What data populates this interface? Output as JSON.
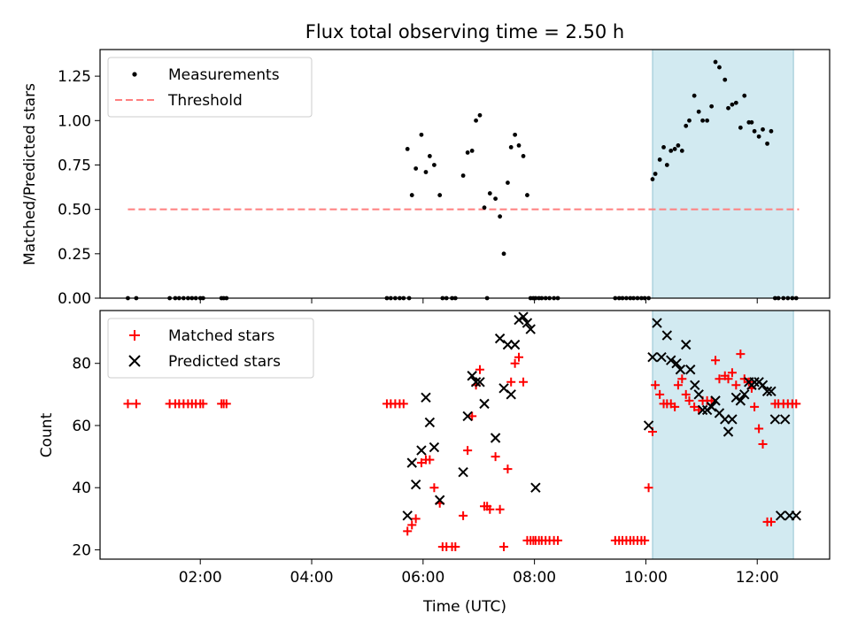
{
  "chart_data": [
    {
      "panel": "top",
      "type": "scatter",
      "title": "Flux total observing time = 2.50 h",
      "xlabel": "",
      "ylabel": "Matched/Predicted stars",
      "xlim": [
        0.2,
        13.3
      ],
      "ylim": [
        0,
        1.4
      ],
      "yticks": [
        0.0,
        0.25,
        0.5,
        0.75,
        1.0,
        1.25
      ],
      "ytick_labels": [
        "0.00",
        "0.25",
        "0.50",
        "0.75",
        "1.00",
        "1.25"
      ],
      "xticks": [
        2,
        4,
        6,
        8,
        10,
        12
      ],
      "xtick_labels": [],
      "shaded_region": {
        "x": [
          10.12,
          12.65
        ],
        "color": "#add8e6"
      },
      "legend_placement": "upper-left",
      "series": [
        {
          "name": "Measurements",
          "kind": "points",
          "color": "#000000",
          "x": [
            0.7,
            0.85,
            1.45,
            1.55,
            1.62,
            1.7,
            1.78,
            1.85,
            1.92,
            2.0,
            2.05,
            2.38,
            2.42,
            2.47,
            5.35,
            5.42,
            5.5,
            5.58,
            5.65,
            5.72,
            5.75,
            5.8,
            5.87,
            5.97,
            6.05,
            6.12,
            6.2,
            6.3,
            6.35,
            6.42,
            6.52,
            6.58,
            6.72,
            6.8,
            6.88,
            6.95,
            7.02,
            7.1,
            7.15,
            7.2,
            7.3,
            7.38,
            7.45,
            7.52,
            7.58,
            7.65,
            7.72,
            7.8,
            7.87,
            7.93,
            7.98,
            8.02,
            8.08,
            8.13,
            8.2,
            8.27,
            8.35,
            8.42,
            9.45,
            9.52,
            9.58,
            9.65,
            9.72,
            9.78,
            9.85,
            9.92,
            9.98,
            10.05,
            10.12,
            10.17,
            10.25,
            10.32,
            10.38,
            10.45,
            10.52,
            10.58,
            10.65,
            10.72,
            10.78,
            10.87,
            10.95,
            11.02,
            11.1,
            11.18,
            11.25,
            11.32,
            11.42,
            11.48,
            11.55,
            11.62,
            11.7,
            11.77,
            11.85,
            11.9,
            11.95,
            12.03,
            12.1,
            12.18,
            12.25,
            12.32,
            12.38,
            12.47,
            12.55,
            12.63,
            12.7
          ],
          "y": [
            0,
            0,
            0,
            0,
            0,
            0,
            0,
            0,
            0,
            0,
            0,
            0,
            0,
            0,
            0,
            0,
            0,
            0,
            0,
            0.84,
            0,
            0.58,
            0.73,
            0.92,
            0.71,
            0.8,
            0.75,
            0.58,
            0,
            0,
            0,
            0,
            0.69,
            0.82,
            0.83,
            1.0,
            1.03,
            0.51,
            0,
            0.59,
            0.56,
            0.46,
            0.25,
            0.65,
            0.85,
            0.92,
            0.86,
            0.8,
            0.58,
            0,
            0,
            0,
            0,
            0,
            0,
            0,
            0,
            0,
            0,
            0,
            0,
            0,
            0,
            0,
            0,
            0,
            0,
            0,
            0.67,
            0.7,
            0.78,
            0.85,
            0.75,
            0.83,
            0.84,
            0.86,
            0.83,
            0.97,
            1.0,
            1.14,
            1.05,
            1.0,
            1.0,
            1.08,
            1.33,
            1.3,
            1.23,
            1.07,
            1.09,
            1.1,
            0.96,
            1.14,
            0.99,
            0.99,
            0.94,
            0.91,
            0.95,
            0.87,
            0.94,
            0,
            0,
            0,
            0,
            0,
            0
          ]
        },
        {
          "name": "Threshold",
          "kind": "dashed-line",
          "color": "#ff7f7f",
          "x": [
            0.7,
            12.75
          ],
          "y": [
            0.5,
            0.5
          ]
        }
      ]
    },
    {
      "panel": "bottom",
      "type": "scatter",
      "title": "",
      "xlabel": "Time (UTC)",
      "ylabel": "Count",
      "xlim": [
        0.2,
        13.3
      ],
      "ylim": [
        17,
        97
      ],
      "yticks": [
        20,
        40,
        60,
        80
      ],
      "ytick_labels": [
        "20",
        "40",
        "60",
        "80"
      ],
      "xticks": [
        2,
        4,
        6,
        8,
        10,
        12
      ],
      "xtick_labels": [
        "02:00",
        "04:00",
        "06:00",
        "08:00",
        "10:00",
        "12:00"
      ],
      "shaded_region": {
        "x": [
          10.12,
          12.65
        ],
        "color": "#add8e6"
      },
      "legend_placement": "upper-left",
      "series": [
        {
          "name": "Matched stars",
          "kind": "plus",
          "color": "#ff0000",
          "x": [
            0.7,
            0.85,
            1.45,
            1.55,
            1.62,
            1.7,
            1.78,
            1.85,
            1.92,
            2.0,
            2.05,
            2.38,
            2.42,
            2.47,
            5.35,
            5.42,
            5.5,
            5.58,
            5.65,
            5.72,
            5.8,
            5.87,
            5.97,
            6.05,
            6.12,
            6.2,
            6.3,
            6.35,
            6.42,
            6.52,
            6.58,
            6.72,
            6.8,
            6.88,
            6.95,
            7.02,
            7.1,
            7.15,
            7.2,
            7.3,
            7.38,
            7.45,
            7.52,
            7.58,
            7.65,
            7.72,
            7.8,
            7.87,
            7.93,
            7.98,
            8.02,
            8.08,
            8.13,
            8.2,
            8.27,
            8.35,
            8.42,
            9.45,
            9.52,
            9.58,
            9.65,
            9.72,
            9.78,
            9.85,
            9.92,
            9.98,
            10.05,
            10.12,
            10.17,
            10.25,
            10.32,
            10.38,
            10.45,
            10.52,
            10.58,
            10.65,
            10.72,
            10.78,
            10.87,
            10.95,
            11.02,
            11.1,
            11.18,
            11.25,
            11.32,
            11.42,
            11.48,
            11.55,
            11.62,
            11.7,
            11.77,
            11.85,
            11.9,
            11.95,
            12.03,
            12.1,
            12.18,
            12.25,
            12.32,
            12.38,
            12.47,
            12.55,
            12.63,
            12.7
          ],
          "y": [
            67,
            67,
            67,
            67,
            67,
            67,
            67,
            67,
            67,
            67,
            67,
            67,
            67,
            67,
            67,
            67,
            67,
            67,
            67,
            26,
            28,
            30,
            48,
            49,
            49,
            40,
            35,
            21,
            21,
            21,
            21,
            31,
            52,
            63,
            73,
            78,
            34,
            34,
            33,
            50,
            33,
            21,
            46,
            74,
            80,
            82,
            74,
            23,
            23,
            23,
            23,
            23,
            23,
            23,
            23,
            23,
            23,
            23,
            23,
            23,
            23,
            23,
            23,
            23,
            23,
            23,
            40,
            58,
            73,
            70,
            67,
            67,
            67,
            66,
            73,
            75,
            70,
            68,
            66,
            65,
            68,
            68,
            68,
            81,
            75,
            76,
            75,
            77,
            73,
            83,
            75,
            74,
            72,
            66,
            59,
            54,
            29,
            29,
            67,
            67,
            67,
            67,
            67,
            67
          ]
        },
        {
          "name": "Predicted stars",
          "kind": "x",
          "color": "#000000",
          "x": [
            5.72,
            5.8,
            5.87,
            5.97,
            6.05,
            6.12,
            6.2,
            6.3,
            6.72,
            6.8,
            6.88,
            6.95,
            7.02,
            7.1,
            7.3,
            7.38,
            7.45,
            7.52,
            7.58,
            7.65,
            7.72,
            7.8,
            7.87,
            7.93,
            8.02,
            10.05,
            10.12,
            10.2,
            10.28,
            10.38,
            10.45,
            10.55,
            10.62,
            10.72,
            10.8,
            10.88,
            10.95,
            11.02,
            11.1,
            11.18,
            11.25,
            11.32,
            11.42,
            11.48,
            11.55,
            11.62,
            11.7,
            11.77,
            11.85,
            11.9,
            11.95,
            12.03,
            12.1,
            12.18,
            12.25,
            12.32,
            12.42,
            12.5,
            12.58,
            12.7
          ],
          "y": [
            31,
            48,
            41,
            52,
            69,
            61,
            53,
            36,
            45,
            63,
            76,
            74,
            74,
            67,
            56,
            88,
            72,
            86,
            70,
            86,
            94,
            95,
            93,
            91,
            40,
            60,
            82,
            93,
            82,
            89,
            81,
            80,
            78,
            86,
            78,
            73,
            70,
            65,
            65,
            66,
            68,
            64,
            62,
            58,
            62,
            69,
            68,
            70,
            74,
            73,
            74,
            74,
            73,
            71,
            71,
            62,
            31,
            62,
            31,
            31
          ]
        }
      ]
    }
  ],
  "legend": {
    "top": [
      "Measurements",
      "Threshold"
    ],
    "bottom": [
      "Matched stars",
      "Predicted stars"
    ]
  },
  "colors": {
    "shade": "#add8e6",
    "threshold": "#ff7f7f",
    "matched": "#ff0000",
    "predicted": "#000000",
    "measurement": "#000000"
  }
}
